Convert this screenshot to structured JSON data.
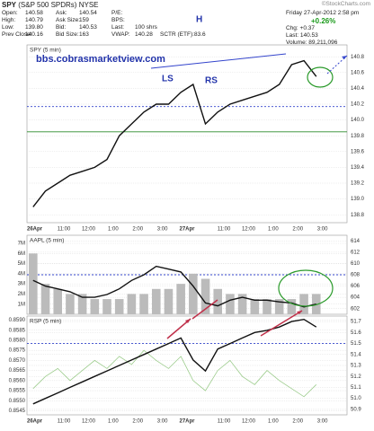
{
  "header": {
    "symbol": "SPY",
    "name": "(S&P 500 SPDRs)",
    "exchange": "NYSE",
    "credit": "©StockCharts.com",
    "fields": [
      [
        [
          "Open:",
          "140.58"
        ],
        [
          "Ask:",
          "140.54"
        ],
        [
          "P/E:",
          ""
        ]
      ],
      [
        [
          "High:",
          "140.79"
        ],
        [
          "Ask Size:",
          "159"
        ],
        [
          "BPS:",
          ""
        ]
      ],
      [
        [
          "Low:",
          "139.80"
        ],
        [
          "Bid:",
          "140.53"
        ],
        [
          "Last:",
          "100 shrs"
        ]
      ],
      [
        [
          "Prev Close:",
          "140.16"
        ],
        [
          "Bid Size:",
          "163"
        ],
        [
          "VWAP:",
          "140.28"
        ],
        [
          "SCTR (ETF):",
          "83.6"
        ]
      ]
    ],
    "date": "Friday 27-Apr-2012 2:58 pm",
    "pct": "+0.26%",
    "chg": "Chg: +0.37",
    "last": "Last: 140.53",
    "volume": "Volume: 89,211,096"
  },
  "annotations": {
    "site": "bbs.cobrasmarketview.com",
    "ls": "LS",
    "h": "H",
    "rs": "RS"
  },
  "chart_data": [
    {
      "type": "line",
      "title": "SPY (5 min)",
      "categories": [
        "26Apr",
        null,
        null,
        "11:00",
        null,
        "12:00",
        null,
        "1:00",
        null,
        "2:00",
        null,
        "3:00",
        null,
        "27Apr",
        null,
        null,
        "11:00",
        null,
        "12:00",
        null,
        "1:00",
        null,
        "2:00",
        null,
        "3:00",
        null
      ],
      "series": [
        {
          "color": "#111111",
          "axis": "y",
          "values": [
            138.9,
            139.1,
            139.2,
            139.3,
            139.35,
            139.4,
            139.5,
            139.8,
            139.95,
            140.1,
            140.2,
            140.2,
            140.35,
            140.45,
            139.95,
            140.1,
            140.2,
            140.25,
            140.3,
            140.35,
            140.45,
            140.7,
            140.75,
            140.55,
            null,
            null
          ]
        }
      ],
      "hlines": [
        {
          "value": 139.85,
          "color": "#2a8a2a",
          "axis": "y"
        },
        {
          "value": 140.17,
          "color": "#3344cc",
          "axis": "y"
        }
      ],
      "ylim": [
        138.7,
        140.95
      ],
      "yticks": [
        138.8,
        {
          "value": 139,
          "label": "139.0"
        },
        139.2,
        139.4,
        139.6,
        139.8,
        {
          "value": 140,
          "label": "140.0"
        },
        140.2,
        140.4,
        140.6,
        140.8
      ],
      "grid": true
    },
    {
      "type": "line",
      "title": "AAPL (5 min)",
      "categories": [
        "26Apr",
        null,
        null,
        "11:00",
        null,
        "12:00",
        null,
        "1:00",
        null,
        "2:00",
        null,
        "3:00",
        null,
        "27Apr",
        null,
        null,
        "11:00",
        null,
        "12:00",
        null,
        "1:00",
        null,
        "2:00",
        null,
        "3:00",
        null
      ],
      "volume": {
        "color": "#bbbbbb",
        "axis": "y",
        "values": [
          6000000,
          3000000,
          2500000,
          2000000,
          2000000,
          1500000,
          1500000,
          1500000,
          2000000,
          2000000,
          2500000,
          2500000,
          3000000,
          4000000,
          3500000,
          2500000,
          2000000,
          2000000,
          1500000,
          1500000,
          1500000,
          1500000,
          2000000,
          2000000,
          null,
          null
        ]
      },
      "series": [
        {
          "color": "#111111",
          "axis": "y2",
          "values": [
            607,
            606,
            605.5,
            605,
            604,
            604,
            604.5,
            605.5,
            607,
            608,
            609.5,
            609,
            608.5,
            606,
            603,
            602.5,
            603.5,
            604,
            603.5,
            603.5,
            603.2,
            603,
            602.3,
            602.8,
            null,
            null
          ]
        }
      ],
      "hlines": [
        {
          "value": 608,
          "color": "#3344cc",
          "axis": "y2"
        }
      ],
      "ylim": [
        0,
        7800000
      ],
      "yticks": [
        {
          "value": 1000000,
          "label": "1M"
        },
        {
          "value": 2000000,
          "label": "2M"
        },
        {
          "value": 3000000,
          "label": "3M"
        },
        {
          "value": 4000000,
          "label": "4M"
        },
        {
          "value": 5000000,
          "label": "5M"
        },
        {
          "value": 6000000,
          "label": "6M"
        },
        {
          "value": 7000000,
          "label": "7M"
        }
      ],
      "y2lim": [
        601,
        615
      ],
      "y2ticks": [
        602,
        604,
        606,
        608,
        610,
        612,
        614
      ],
      "grid": true
    },
    {
      "type": "line",
      "title": "RSP (5 min)",
      "categories": [
        "26Apr",
        null,
        null,
        "11:00",
        null,
        "12:00",
        null,
        "1:00",
        null,
        "2:00",
        null,
        "3:00",
        null,
        "27Apr",
        null,
        null,
        "11:00",
        null,
        "12:00",
        null,
        "1:00",
        null,
        "2:00",
        null,
        "3:00",
        null
      ],
      "series": [
        {
          "color": "#9ccc8c",
          "axis": "y",
          "values": [
            0.8556,
            0.8562,
            0.8566,
            0.856,
            0.8565,
            0.857,
            0.8566,
            0.8572,
            0.8568,
            0.8575,
            0.857,
            0.8566,
            0.8572,
            0.856,
            0.8555,
            0.8565,
            0.857,
            0.8562,
            0.8558,
            0.8565,
            0.856,
            0.8556,
            0.8552,
            0.8558,
            null,
            null
          ]
        },
        {
          "color": "#111111",
          "axis": "y2",
          "values": [
            50.95,
            51.0,
            51.05,
            51.1,
            51.15,
            51.2,
            51.25,
            51.3,
            51.35,
            51.4,
            51.45,
            51.5,
            51.55,
            51.35,
            51.25,
            51.45,
            51.5,
            51.55,
            51.6,
            51.62,
            51.65,
            51.7,
            51.72,
            51.65,
            null,
            null
          ]
        }
      ],
      "hlines": [
        {
          "value": 51.5,
          "color": "#3344cc",
          "axis": "y2"
        }
      ],
      "ylim": [
        0.8543,
        0.8592
      ],
      "yticks": [
        0.8545,
        {
          "value": 0.855,
          "label": "0.8550"
        },
        0.8555,
        {
          "value": 0.856,
          "label": "0.8560"
        },
        0.8565,
        {
          "value": 0.857,
          "label": "0.8570"
        },
        0.8575,
        {
          "value": 0.858,
          "label": "0.8580"
        },
        0.8585,
        {
          "value": 0.859,
          "label": "0.8590"
        }
      ],
      "y2lim": [
        50.85,
        51.75
      ],
      "y2ticks": [
        50.9,
        {
          "value": 51,
          "label": "51.0"
        },
        51.1,
        51.2,
        51.3,
        51.4,
        51.5,
        51.6,
        51.7
      ],
      "grid": true
    }
  ]
}
